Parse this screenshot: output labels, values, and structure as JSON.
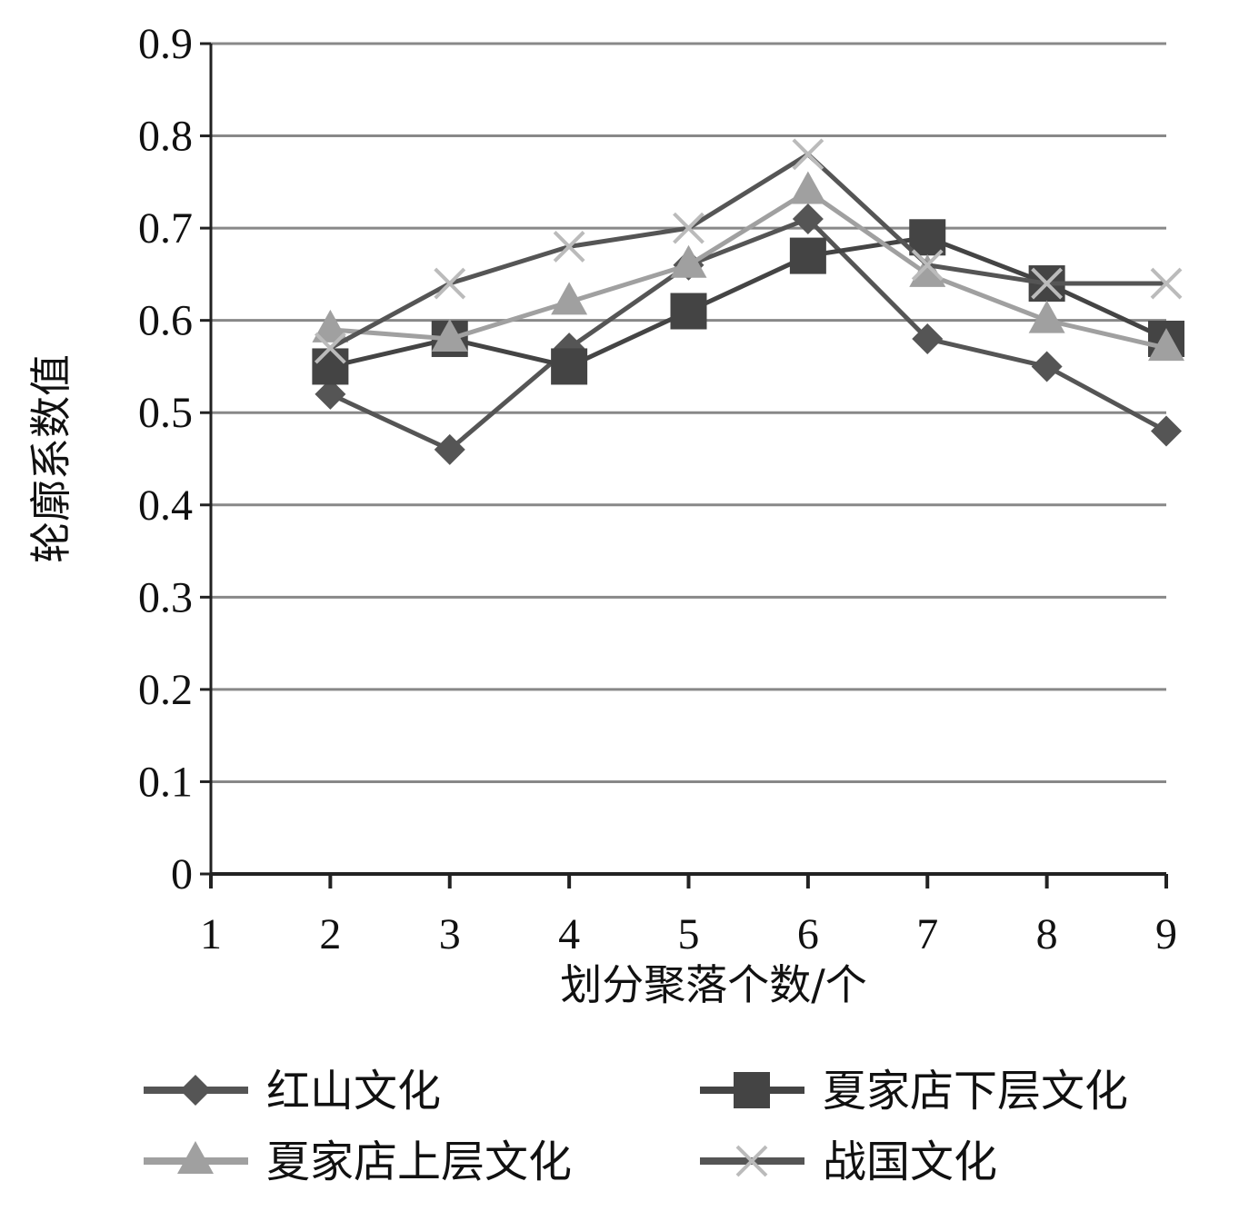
{
  "chart_data": {
    "type": "line",
    "xlabel": "划分聚落个数/个",
    "ylabel": "轮廓系数值",
    "x": [
      2,
      3,
      4,
      5,
      6,
      7,
      8,
      9
    ],
    "xlim": [
      1,
      9
    ],
    "xticks": [
      1,
      2,
      3,
      4,
      5,
      6,
      7,
      8,
      9
    ],
    "ylim": [
      0,
      0.9
    ],
    "yticks": [
      0,
      0.1,
      0.2,
      0.3,
      0.4,
      0.5,
      0.6,
      0.7,
      0.8,
      0.9
    ],
    "grid": true,
    "series": [
      {
        "name": "红山文化",
        "color": "#555555",
        "marker": "diamond",
        "values": [
          0.52,
          0.46,
          0.57,
          0.66,
          0.71,
          0.58,
          0.55,
          0.48
        ]
      },
      {
        "name": "夏家店下层文化",
        "color": "#444444",
        "marker": "square",
        "values": [
          0.55,
          0.58,
          0.55,
          0.61,
          0.67,
          0.69,
          0.64,
          0.58
        ]
      },
      {
        "name": "夏家店上层文化",
        "color": "#a0a0a0",
        "marker": "triangle",
        "values": [
          0.59,
          0.58,
          0.62,
          0.66,
          0.74,
          0.65,
          0.6,
          0.57
        ]
      },
      {
        "name": "战国文化",
        "color": "#555555",
        "marker": "cross",
        "values": [
          0.57,
          0.64,
          0.68,
          0.7,
          0.78,
          0.66,
          0.64,
          0.64
        ]
      }
    ]
  }
}
